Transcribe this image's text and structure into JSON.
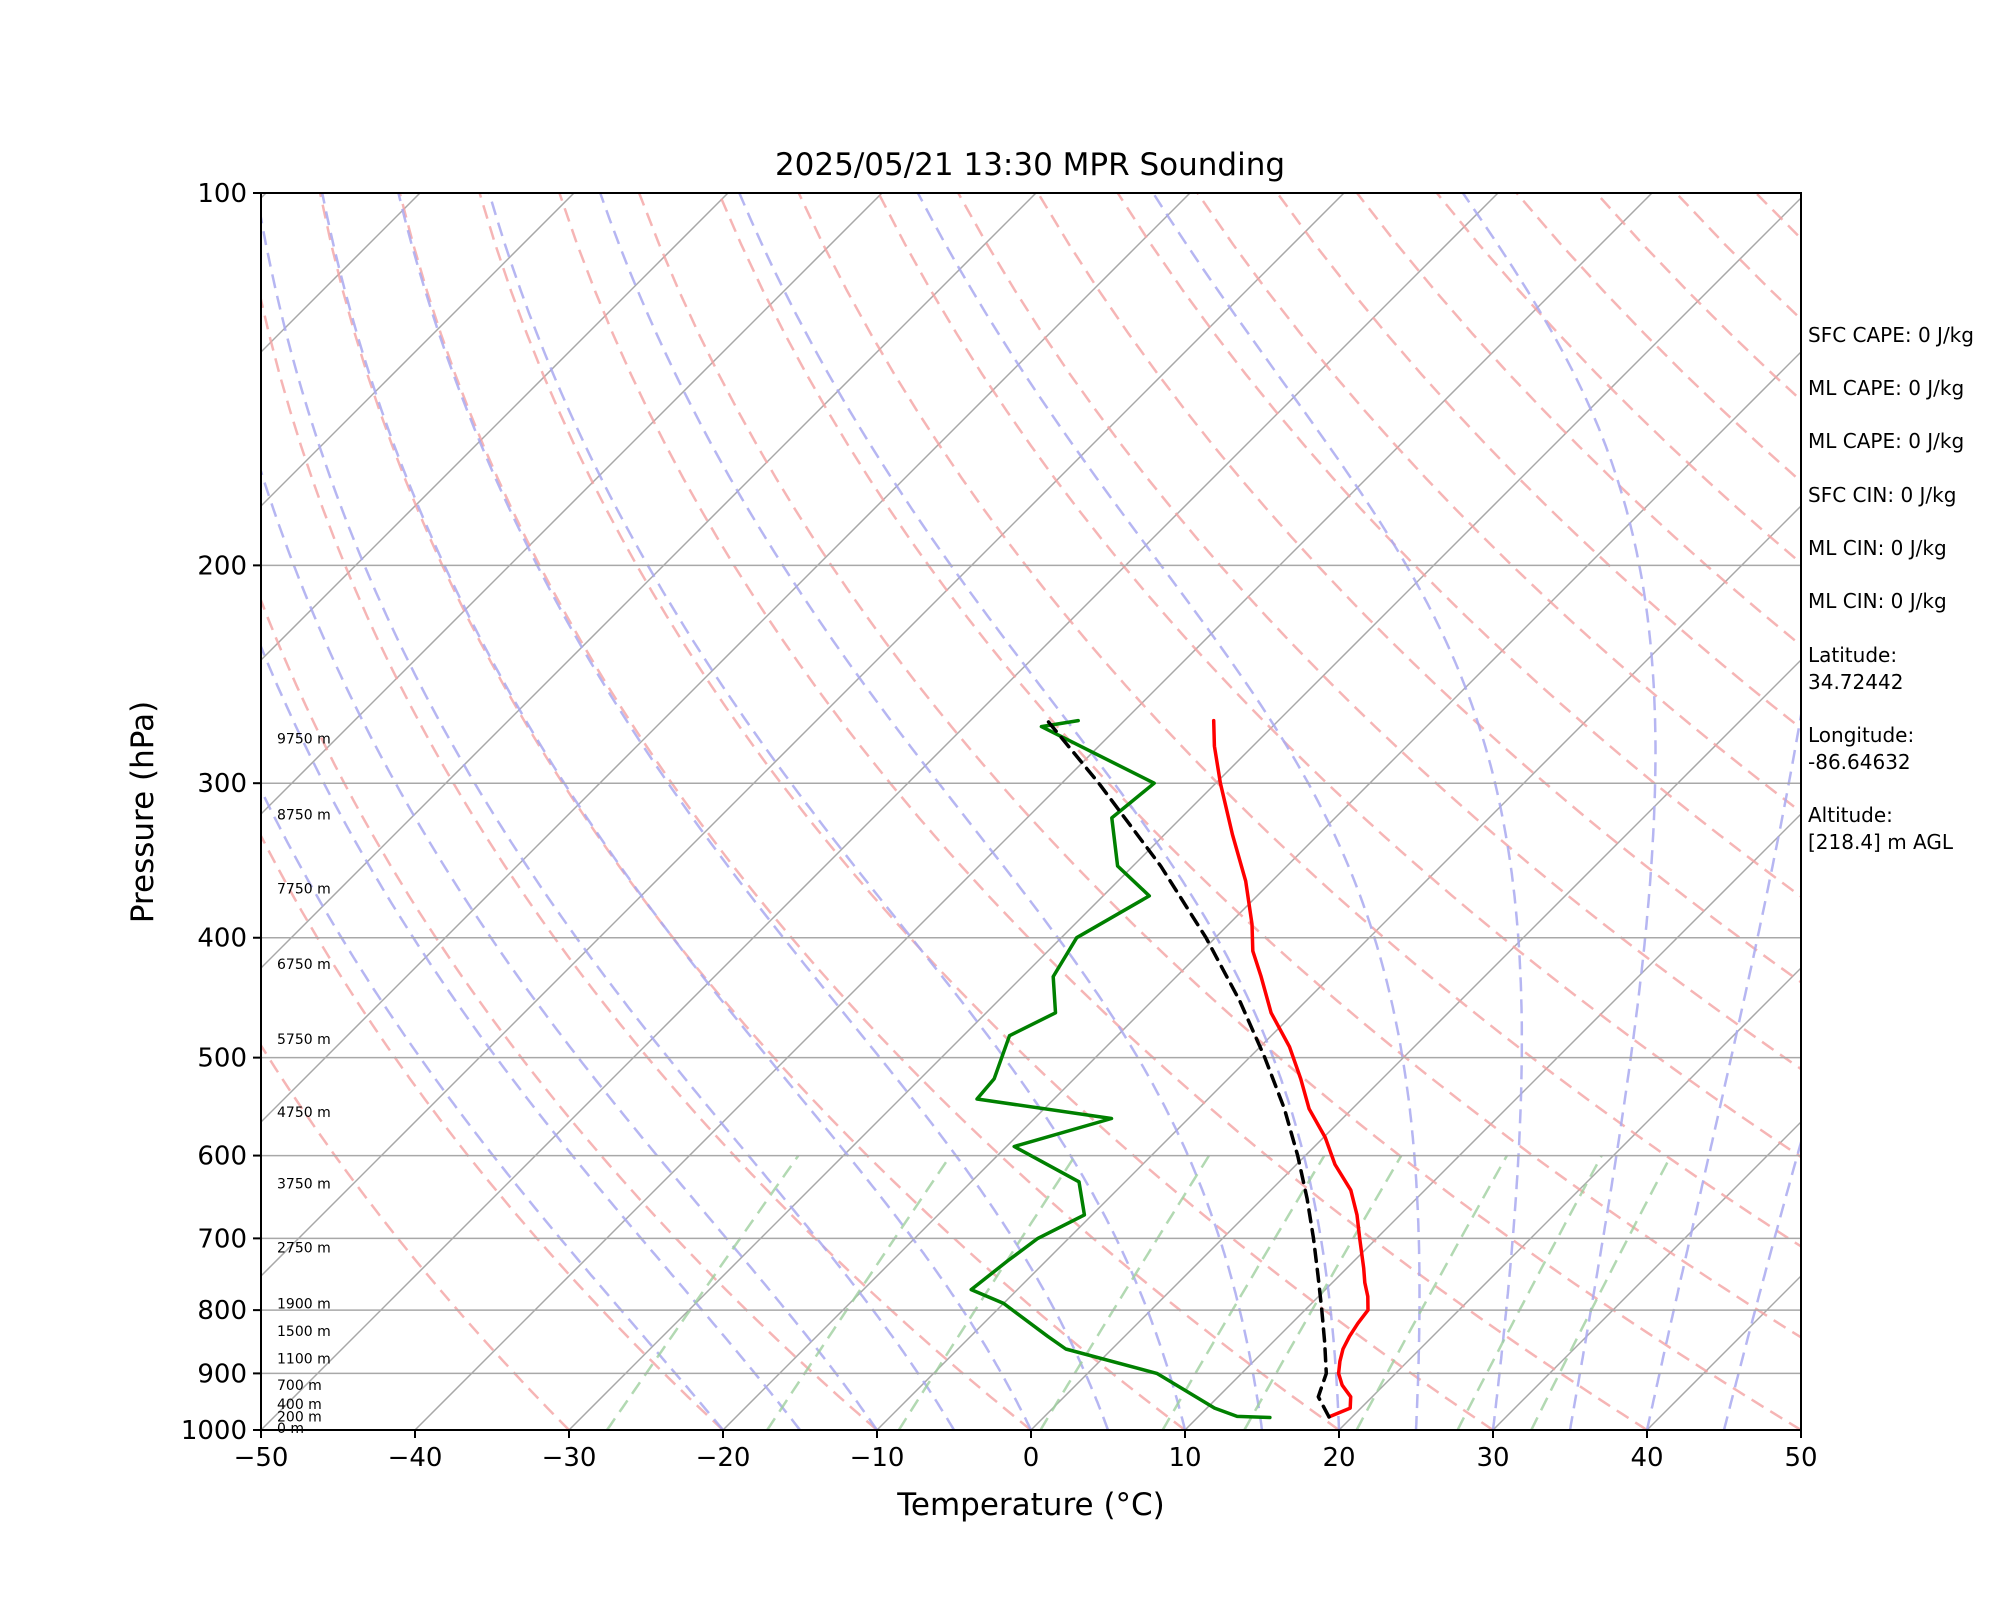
{
  "chart_data": {
    "type": "line",
    "chart_kind": "skew-t log-p",
    "title": "2025/05/21 13:30 MPR Sounding",
    "xlabel": "Temperature (°C)",
    "ylabel": "Pressure (hPa)",
    "xlim": [
      -50,
      50
    ],
    "ylim": [
      1000,
      100
    ],
    "y_scale": "log",
    "x_ticks": [
      "−50",
      "−40",
      "−30",
      "−20",
      "−10",
      "0",
      "10",
      "20",
      "30",
      "40",
      "50"
    ],
    "y_ticks": [
      100,
      200,
      300,
      400,
      500,
      600,
      700,
      800,
      900,
      1000
    ],
    "skew_deg": 45,
    "grid": true,
    "background_lines": {
      "isotherm_color": "#a8a8a8",
      "dry_adiabat_color": "#f4a3a3",
      "moist_adiabat_color": "#a9a9f0",
      "mixing_ratio_color": "#9fcf9f"
    },
    "series": [
      {
        "color": "#ff0000",
        "style": "solid",
        "points": [
          [
            976,
            18.5
          ],
          [
            960,
            19.3
          ],
          [
            940,
            18.6
          ],
          [
            920,
            17.3
          ],
          [
            900,
            16.3
          ],
          [
            880,
            15.6
          ],
          [
            860,
            15.0
          ],
          [
            840,
            14.6
          ],
          [
            820,
            14.3
          ],
          [
            800,
            14.1
          ],
          [
            780,
            13.2
          ],
          [
            760,
            12.1
          ],
          [
            740,
            11.1
          ],
          [
            700,
            8.9
          ],
          [
            670,
            7.2
          ],
          [
            640,
            5.2
          ],
          [
            610,
            2.5
          ],
          [
            580,
            0.1
          ],
          [
            550,
            -2.8
          ],
          [
            520,
            -5.3
          ],
          [
            490,
            -8.1
          ],
          [
            460,
            -11.5
          ],
          [
            430,
            -14.5
          ],
          [
            410,
            -16.7
          ],
          [
            390,
            -18.5
          ],
          [
            360,
            -21.7
          ],
          [
            330,
            -25.6
          ],
          [
            300,
            -29.7
          ],
          [
            280,
            -32.5
          ],
          [
            267,
            -34.2
          ]
        ]
      },
      {
        "color": "#008000",
        "style": "solid",
        "points": [
          [
            977,
            14.7
          ],
          [
            975,
            12.5
          ],
          [
            960,
            10.5
          ],
          [
            900,
            4.5
          ],
          [
            860,
            -3.0
          ],
          [
            840,
            -5.0
          ],
          [
            790,
            -10.0
          ],
          [
            770,
            -13.0
          ],
          [
            730,
            -12.5
          ],
          [
            700,
            -12.0
          ],
          [
            670,
            -10.5
          ],
          [
            630,
            -13.0
          ],
          [
            590,
            -19.5
          ],
          [
            560,
            -15.0
          ],
          [
            540,
            -25.0
          ],
          [
            520,
            -25.2
          ],
          [
            480,
            -27.0
          ],
          [
            460,
            -25.5
          ],
          [
            430,
            -28.0
          ],
          [
            400,
            -29.0
          ],
          [
            370,
            -27.0
          ],
          [
            350,
            -31.0
          ],
          [
            320,
            -34.5
          ],
          [
            300,
            -34.0
          ],
          [
            270,
            -45.0
          ],
          [
            267,
            -43.0
          ]
        ]
      },
      {
        "color": "#000000",
        "style": "dashed",
        "points": [
          [
            976,
            18.5
          ],
          [
            940,
            16.5
          ],
          [
            900,
            15.5
          ],
          [
            850,
            13.4
          ],
          [
            800,
            11.1
          ],
          [
            750,
            8.6
          ],
          [
            700,
            5.9
          ],
          [
            650,
            2.9
          ],
          [
            600,
            -0.5
          ],
          [
            550,
            -4.4
          ],
          [
            500,
            -9.0
          ],
          [
            450,
            -14.3
          ],
          [
            400,
            -20.6
          ],
          [
            350,
            -28.2
          ],
          [
            300,
            -37.6
          ],
          [
            267,
            -45.0
          ]
        ]
      }
    ],
    "height_labels": [
      {
        "p": 996,
        "label": "0 m"
      },
      {
        "p": 975,
        "label": "200 m"
      },
      {
        "p": 953,
        "label": "400 m"
      },
      {
        "p": 920,
        "label": "700 m"
      },
      {
        "p": 875,
        "label": "1100 m"
      },
      {
        "p": 832,
        "label": "1500 m"
      },
      {
        "p": 790,
        "label": "1900 m"
      },
      {
        "p": 712,
        "label": "2750 m"
      },
      {
        "p": 632,
        "label": "3750 m"
      },
      {
        "p": 553,
        "label": "4750 m"
      },
      {
        "p": 483,
        "label": "5750 m"
      },
      {
        "p": 420,
        "label": "6750 m"
      },
      {
        "p": 365,
        "label": "7750 m"
      },
      {
        "p": 318,
        "label": "8750 m"
      },
      {
        "p": 276,
        "label": "9750 m"
      }
    ],
    "info": [
      "SFC CAPE: 0 J/kg",
      "ML CAPE: 0 J/kg",
      "ML CAPE: 0 J/kg",
      "SFC CIN: 0 J/kg",
      "ML CIN: 0 J/kg",
      "ML CIN: 0 J/kg",
      "Latitude:\n34.72442",
      "Longitude:\n-86.64632",
      "Altitude:\n[218.4] m AGL"
    ]
  }
}
